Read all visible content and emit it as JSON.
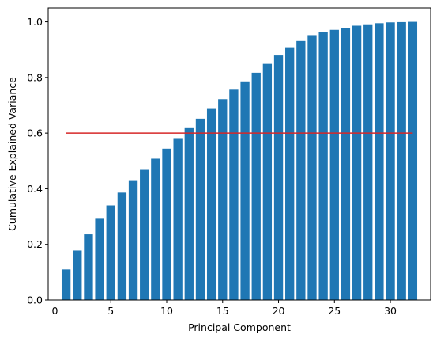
{
  "chart_data": {
    "type": "bar",
    "title": "",
    "xlabel": "Principal Component",
    "ylabel": "Cumulative Explained Variance",
    "categories": [
      1,
      2,
      3,
      4,
      5,
      6,
      7,
      8,
      9,
      10,
      11,
      12,
      13,
      14,
      15,
      16,
      17,
      18,
      19,
      20,
      21,
      22,
      23,
      24,
      25,
      26,
      27,
      28,
      29,
      30,
      31,
      32
    ],
    "values": [
      0.11,
      0.178,
      0.236,
      0.292,
      0.34,
      0.386,
      0.428,
      0.468,
      0.508,
      0.544,
      0.582,
      0.618,
      0.652,
      0.687,
      0.722,
      0.756,
      0.786,
      0.817,
      0.849,
      0.879,
      0.906,
      0.931,
      0.952,
      0.964,
      0.971,
      0.978,
      0.986,
      0.991,
      0.995,
      0.998,
      0.999,
      1.0
    ],
    "bar_color": "#1f77b4",
    "xlim": [
      -0.6,
      33.6
    ],
    "ylim": [
      0,
      1.05
    ],
    "xticks": [
      0,
      5,
      10,
      15,
      20,
      25,
      30
    ],
    "yticks": [
      0.0,
      0.2,
      0.4,
      0.6,
      0.8,
      1.0
    ],
    "xtick_labels": [
      "0",
      "5",
      "10",
      "15",
      "20",
      "25",
      "30"
    ],
    "ytick_labels": [
      "0.0",
      "0.2",
      "0.4",
      "0.6",
      "0.8",
      "1.0"
    ],
    "threshold": {
      "y": 0.6,
      "x_start": 1,
      "x_end": 32,
      "color": "#d62728"
    },
    "grid": false
  }
}
